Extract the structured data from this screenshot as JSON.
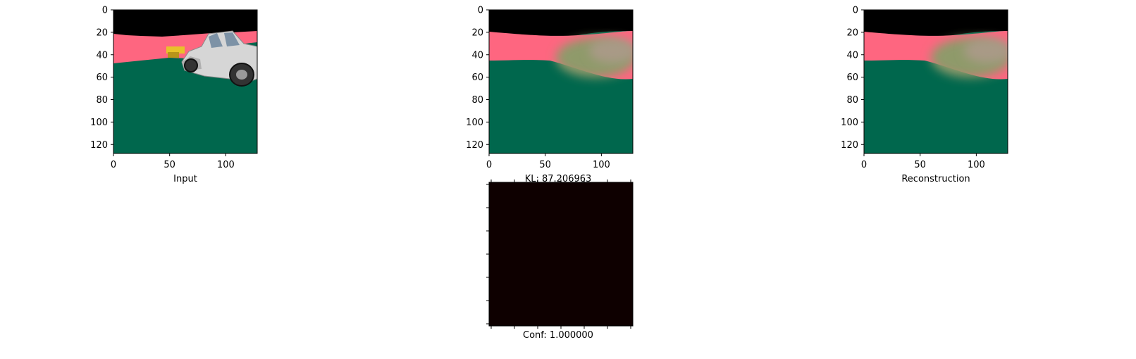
{
  "chart_data": [
    {
      "type": "image",
      "xlabel": "Input",
      "xticks": [
        "0",
        "50",
        "100"
      ],
      "yticks": [
        "0",
        "20",
        "40",
        "60",
        "80",
        "100",
        "120"
      ],
      "extent": [
        0,
        128
      ],
      "scene": "car",
      "colors": {
        "sky": "#000000",
        "horizon": "#fe6680",
        "ground": "#00674d",
        "car": "#d8d8d8"
      }
    },
    {
      "type": "image",
      "xlabel": "KL: 87.206963",
      "xticks": [
        "0",
        "50",
        "100"
      ],
      "yticks": [
        "0",
        "20",
        "40",
        "60",
        "80",
        "100",
        "120"
      ],
      "extent": [
        0,
        128
      ],
      "scene": "blurred",
      "colors": {
        "sky": "#000000",
        "horizon": "#fe6680",
        "ground": "#00674d",
        "blob": "#8f9a6a"
      }
    },
    {
      "type": "image",
      "xlabel": "Reconstruction",
      "xticks": [
        "0",
        "50",
        "100"
      ],
      "yticks": [
        "0",
        "20",
        "40",
        "60",
        "80",
        "100",
        "120"
      ],
      "extent": [
        0,
        128
      ],
      "scene": "blurred",
      "colors": {
        "sky": "#000000",
        "horizon": "#fe6680",
        "ground": "#00674d",
        "blob": "#8f9a6a"
      }
    },
    {
      "type": "heatmap",
      "xlabel": "Conf: 1.000000",
      "xticks": [],
      "yticks": [],
      "fill": "#0e0000"
    }
  ]
}
